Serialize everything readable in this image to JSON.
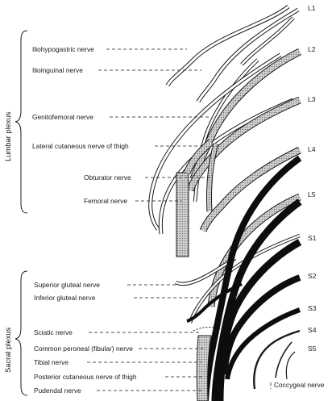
{
  "segments": [
    "L1",
    "L2",
    "L3",
    "L4",
    "L5",
    "S1",
    "S2",
    "S3",
    "S4",
    "S5"
  ],
  "plexus_groups": {
    "lumbar": "Lumbar plexus",
    "sacral": "Sacral plexus"
  },
  "nerves": {
    "iliohypogastric": "Iliohypogastric nerve",
    "ilioinguinal": "Ilioinguinal nerve",
    "genitofemoral": "Genitofemoral nerve",
    "lateral_cutaneous_thigh": "Lateral cutaneous nerve of thigh",
    "obturator": "Obturator nerve",
    "femoral": "Femoral nerve",
    "superior_gluteal": "Superior gluteal nerve",
    "inferior_gluteal": "Inferior gluteal nerve",
    "sciatic": "Sciatic nerve",
    "common_peroneal": "Common peroneal (fibular) nerve",
    "tibial": "Tibial nerve",
    "posterior_cutaneous_thigh": "Posterior cutaneous nerve of thigh",
    "pudendal": "Pudendal nerve",
    "coccygeal": "Coccygeal nerve"
  },
  "colors": {
    "ink": "#1a1a1a",
    "stipple": "#b4b4b4",
    "sacral_fill": "#0d0d0d"
  }
}
